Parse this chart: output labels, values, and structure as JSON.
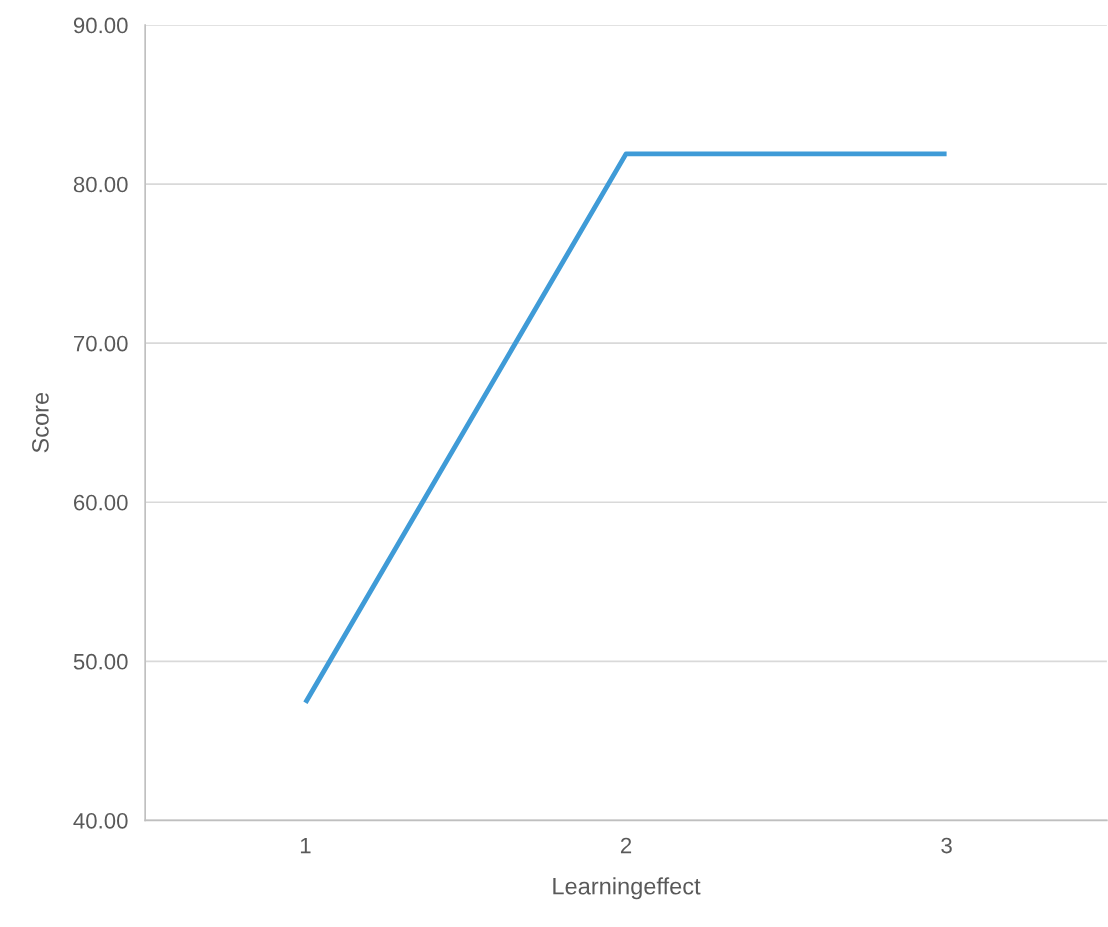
{
  "chart_data": {
    "type": "line",
    "xlabel": "Learningeffect",
    "ylabel": "Score",
    "categories": [
      "1",
      "2",
      "3"
    ],
    "series": [
      {
        "color": "#3f9bd7",
        "values": [
          47.4,
          81.9,
          81.9
        ]
      }
    ],
    "ylim": [
      40,
      90
    ],
    "yticks": [
      {
        "value": 40,
        "label": "40.00"
      },
      {
        "value": 50,
        "label": "50.00"
      },
      {
        "value": 60,
        "label": "60.00"
      },
      {
        "value": 70,
        "label": "70.00"
      },
      {
        "value": 80,
        "label": "80.00"
      },
      {
        "value": 90,
        "label": "90.00"
      }
    ],
    "grid": "y",
    "marker": "none",
    "line_style": "solid"
  }
}
